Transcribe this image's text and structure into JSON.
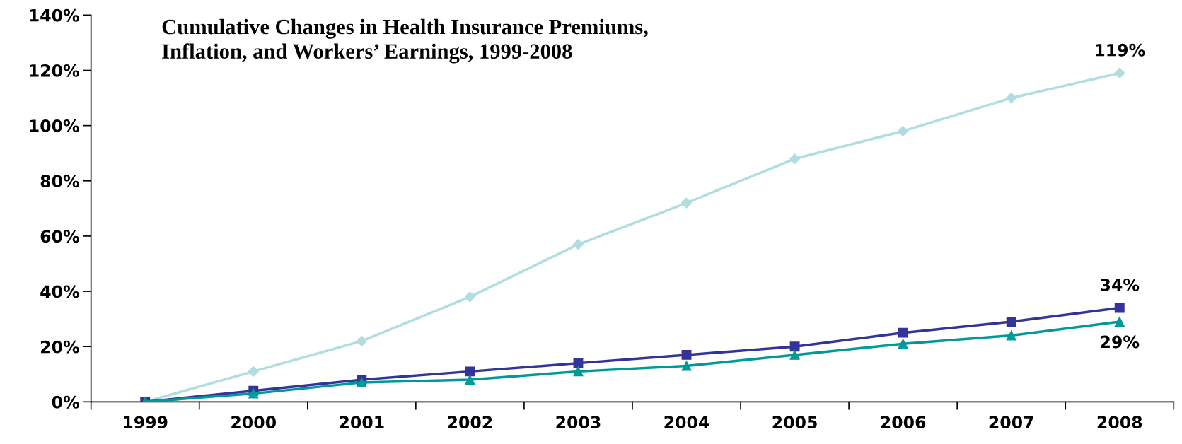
{
  "chart_data": {
    "type": "line",
    "title": "Cumulative Changes in Health Insurance Premiums, Inflation, and Workers’ Earnings, 1999-2008",
    "categories": [
      "1999",
      "2000",
      "2001",
      "2002",
      "2003",
      "2004",
      "2005",
      "2006",
      "2007",
      "2008"
    ],
    "series": [
      {
        "color": "#b0dde0",
        "marker": "diamond",
        "values": [
          0,
          11,
          22,
          38,
          57,
          72,
          88,
          98,
          110,
          119
        ],
        "value_labels": [
          null,
          null,
          null,
          null,
          null,
          null,
          null,
          null,
          null,
          "119%"
        ]
      },
      {
        "color": "#333399",
        "marker": "square",
        "values": [
          0,
          4,
          8,
          11,
          14,
          17,
          20,
          25,
          29,
          34
        ],
        "value_labels": [
          null,
          null,
          null,
          null,
          null,
          null,
          null,
          null,
          null,
          "34%"
        ]
      },
      {
        "color": "#009999",
        "marker": "triangle",
        "values": [
          0,
          3,
          7,
          8,
          11,
          13,
          17,
          21,
          24,
          29
        ],
        "value_labels": [
          null,
          null,
          null,
          null,
          null,
          null,
          null,
          null,
          null,
          "29%"
        ]
      }
    ],
    "ylim": [
      0,
      140
    ],
    "yticks": [
      {
        "value": 0,
        "label": "0%"
      },
      {
        "value": 20,
        "label": "20%"
      },
      {
        "value": 40,
        "label": "40%"
      },
      {
        "value": 60,
        "label": "60%"
      },
      {
        "value": 80,
        "label": "80%"
      },
      {
        "value": 100,
        "label": "100%"
      },
      {
        "value": 120,
        "label": "120%"
      },
      {
        "value": 140,
        "label": "140%"
      }
    ],
    "grid": false,
    "legend": false,
    "line_style": "solid"
  }
}
